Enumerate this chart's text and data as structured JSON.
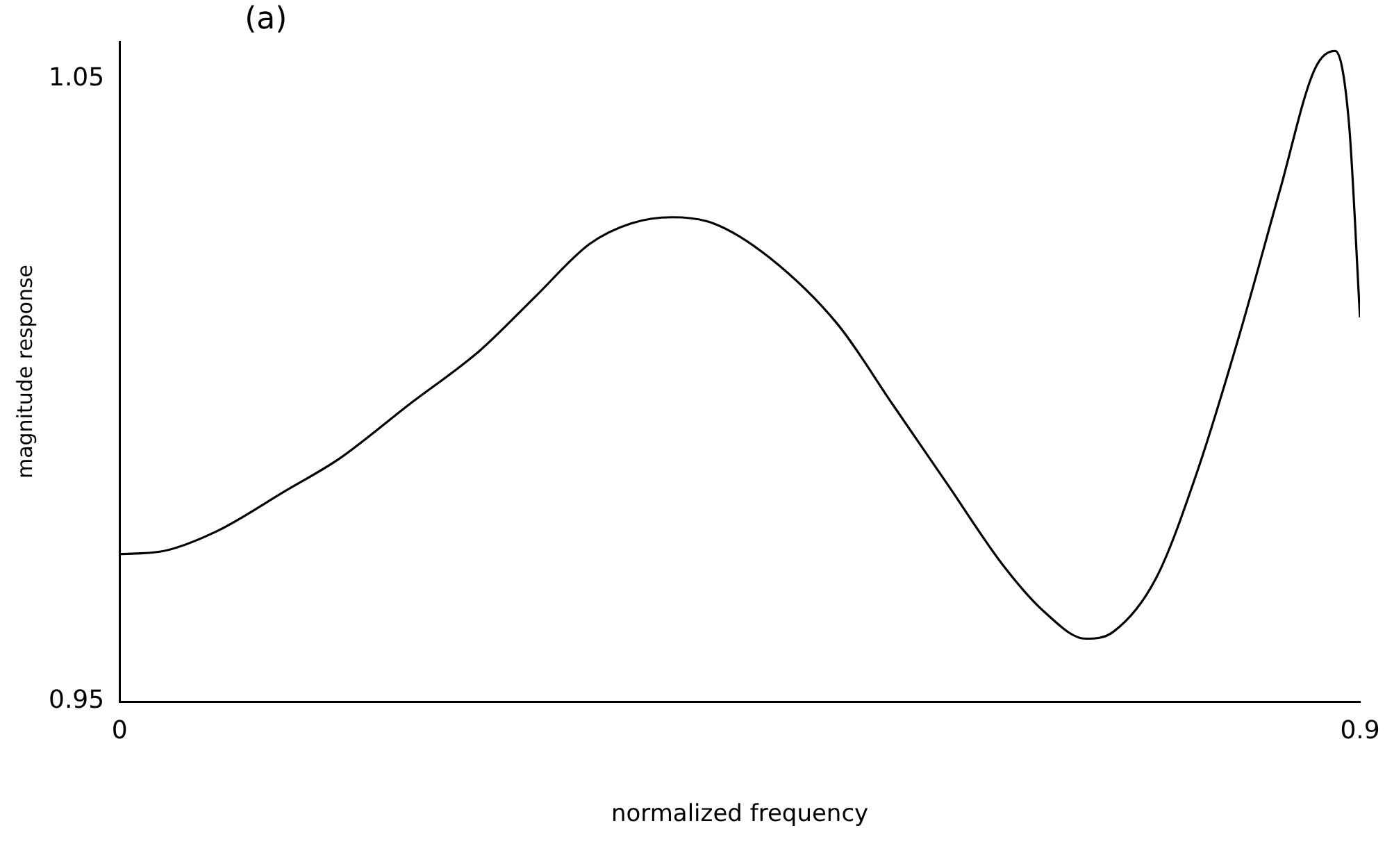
{
  "chart_data": {
    "type": "line",
    "title": "(a)",
    "xlabel": "normalized frequency",
    "ylabel": "magnitude response",
    "x": [
      0,
      0.03,
      0.07,
      0.12,
      0.16,
      0.21,
      0.261,
      0.301,
      0.341,
      0.371,
      0.401,
      0.431,
      0.471,
      0.521,
      0.561,
      0.601,
      0.641,
      0.671,
      0.701,
      0.721,
      0.752,
      0.782,
      0.812,
      0.842,
      0.867,
      0.882,
      0.892,
      0.9
    ],
    "series": [
      {
        "color": "#000000",
        "values": [
          0.9737,
          0.9741,
          0.9773,
          0.9838,
          0.9891,
          0.9977,
          1.0063,
          1.0149,
          1.0235,
          1.0268,
          1.0278,
          1.0268,
          1.0214,
          1.0106,
          0.9977,
          0.9848,
          0.9719,
          0.9644,
          0.9601,
          0.9612,
          0.9698,
          0.987,
          1.0085,
          1.0322,
          1.0515,
          1.0545,
          1.0429,
          1.0117
        ]
      }
    ],
    "xlim": [
      0,
      0.9
    ],
    "ylim": [
      0.95,
      1.056
    ],
    "xticks": [
      0,
      0.9
    ],
    "yticks": [
      0.95,
      1.05
    ],
    "grid": false,
    "legend": false,
    "marker": "none",
    "line_style": "solid"
  }
}
